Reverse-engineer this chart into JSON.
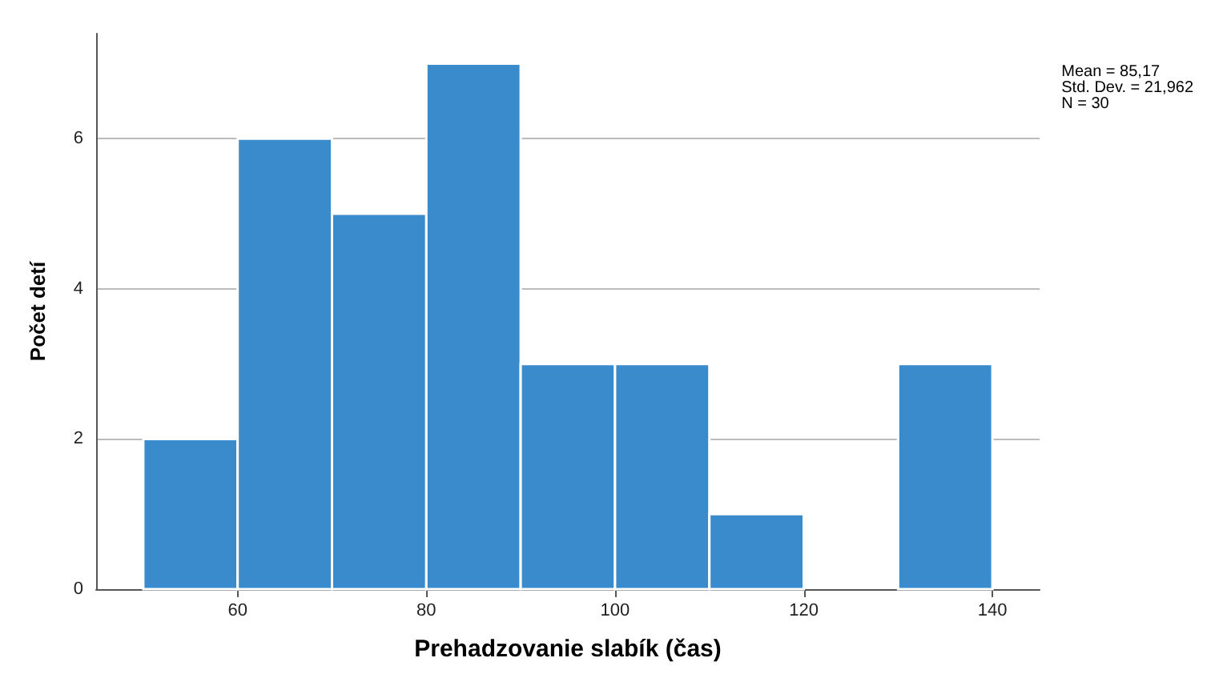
{
  "chart_data": {
    "type": "histogram",
    "xlabel": "Prehadzovanie slabík (čas)",
    "ylabel": "Počet detí",
    "bins": [
      50,
      60,
      70,
      80,
      90,
      100,
      110,
      120,
      130,
      140
    ],
    "values": [
      2,
      6,
      5,
      7,
      3,
      3,
      1,
      0,
      3
    ],
    "color": "#3a8bcb",
    "xlim": [
      45,
      145
    ],
    "xticks": [
      60,
      80,
      100,
      120,
      140
    ],
    "ylim": [
      0,
      7.4
    ],
    "yticks": [
      0,
      2,
      4,
      6
    ],
    "grid": "y",
    "annotations": [
      "Mean = 85,17\nStd. Dev. = 21,962\nN = 30"
    ]
  }
}
